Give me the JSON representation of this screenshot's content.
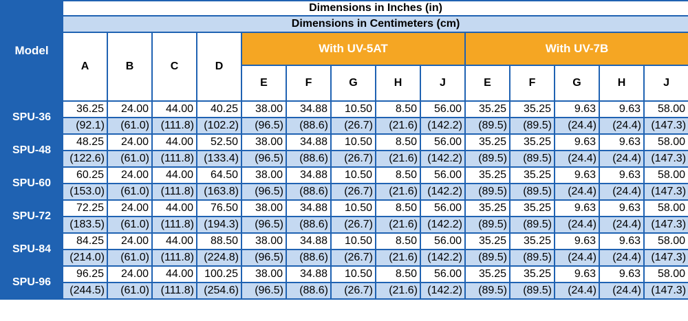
{
  "title_inches": "Dimensions in Inches (in)",
  "title_cm": "Dimensions in Centimeters (cm)",
  "model_header": "Model",
  "base_columns": [
    "A",
    "B",
    "C",
    "D"
  ],
  "groups": [
    {
      "label": "With UV-5AT",
      "columns": [
        "E",
        "F",
        "G",
        "H",
        "J"
      ]
    },
    {
      "label": "With UV-7B",
      "columns": [
        "E",
        "F",
        "G",
        "H",
        "J"
      ]
    }
  ],
  "colors": {
    "model_bg": "#1f62b2",
    "group_bg": "#f5a623",
    "cm_row_bg": "#c5d9f1",
    "border": "#1f62b2"
  },
  "rows": [
    {
      "model": "SPU-36",
      "inches": [
        "36.25",
        "24.00",
        "44.00",
        "40.25",
        "38.00",
        "34.88",
        "10.50",
        "8.50",
        "56.00",
        "35.25",
        "35.25",
        "9.63",
        "9.63",
        "58.00"
      ],
      "cm": [
        "(92.1)",
        "(61.0)",
        "(111.8)",
        "(102.2)",
        "(96.5)",
        "(88.6)",
        "(26.7)",
        "(21.6)",
        "(142.2)",
        "(89.5)",
        "(89.5)",
        "(24.4)",
        "(24.4)",
        "(147.3)"
      ]
    },
    {
      "model": "SPU-48",
      "inches": [
        "48.25",
        "24.00",
        "44.00",
        "52.50",
        "38.00",
        "34.88",
        "10.50",
        "8.50",
        "56.00",
        "35.25",
        "35.25",
        "9.63",
        "9.63",
        "58.00"
      ],
      "cm": [
        "(122.6)",
        "(61.0)",
        "(111.8)",
        "(133.4)",
        "(96.5)",
        "(88.6)",
        "(26.7)",
        "(21.6)",
        "(142.2)",
        "(89.5)",
        "(89.5)",
        "(24.4)",
        "(24.4)",
        "(147.3)"
      ]
    },
    {
      "model": "SPU-60",
      "inches": [
        "60.25",
        "24.00",
        "44.00",
        "64.50",
        "38.00",
        "34.88",
        "10.50",
        "8.50",
        "56.00",
        "35.25",
        "35.25",
        "9.63",
        "9.63",
        "58.00"
      ],
      "cm": [
        "(153.0)",
        "(61.0)",
        "(111.8)",
        "(163.8)",
        "(96.5)",
        "(88.6)",
        "(26.7)",
        "(21.6)",
        "(142.2)",
        "(89.5)",
        "(89.5)",
        "(24.4)",
        "(24.4)",
        "(147.3)"
      ]
    },
    {
      "model": "SPU-72",
      "inches": [
        "72.25",
        "24.00",
        "44.00",
        "76.50",
        "38.00",
        "34.88",
        "10.50",
        "8.50",
        "56.00",
        "35.25",
        "35.25",
        "9.63",
        "9.63",
        "58.00"
      ],
      "cm": [
        "(183.5)",
        "(61.0)",
        "(111.8)",
        "(194.3)",
        "(96.5)",
        "(88.6)",
        "(26.7)",
        "(21.6)",
        "(142.2)",
        "(89.5)",
        "(89.5)",
        "(24.4)",
        "(24.4)",
        "(147.3)"
      ]
    },
    {
      "model": "SPU-84",
      "inches": [
        "84.25",
        "24.00",
        "44.00",
        "88.50",
        "38.00",
        "34.88",
        "10.50",
        "8.50",
        "56.00",
        "35.25",
        "35.25",
        "9.63",
        "9.63",
        "58.00"
      ],
      "cm": [
        "(214.0)",
        "(61.0)",
        "(111.8)",
        "(224.8)",
        "(96.5)",
        "(88.6)",
        "(26.7)",
        "(21.6)",
        "(142.2)",
        "(89.5)",
        "(89.5)",
        "(24.4)",
        "(24.4)",
        "(147.3)"
      ]
    },
    {
      "model": "SPU-96",
      "inches": [
        "96.25",
        "24.00",
        "44.00",
        "100.25",
        "38.00",
        "34.88",
        "10.50",
        "8.50",
        "56.00",
        "35.25",
        "35.25",
        "9.63",
        "9.63",
        "58.00"
      ],
      "cm": [
        "(244.5)",
        "(61.0)",
        "(111.8)",
        "(254.6)",
        "(96.5)",
        "(88.6)",
        "(26.7)",
        "(21.6)",
        "(142.2)",
        "(89.5)",
        "(89.5)",
        "(24.4)",
        "(24.4)",
        "(147.3)"
      ]
    }
  ]
}
